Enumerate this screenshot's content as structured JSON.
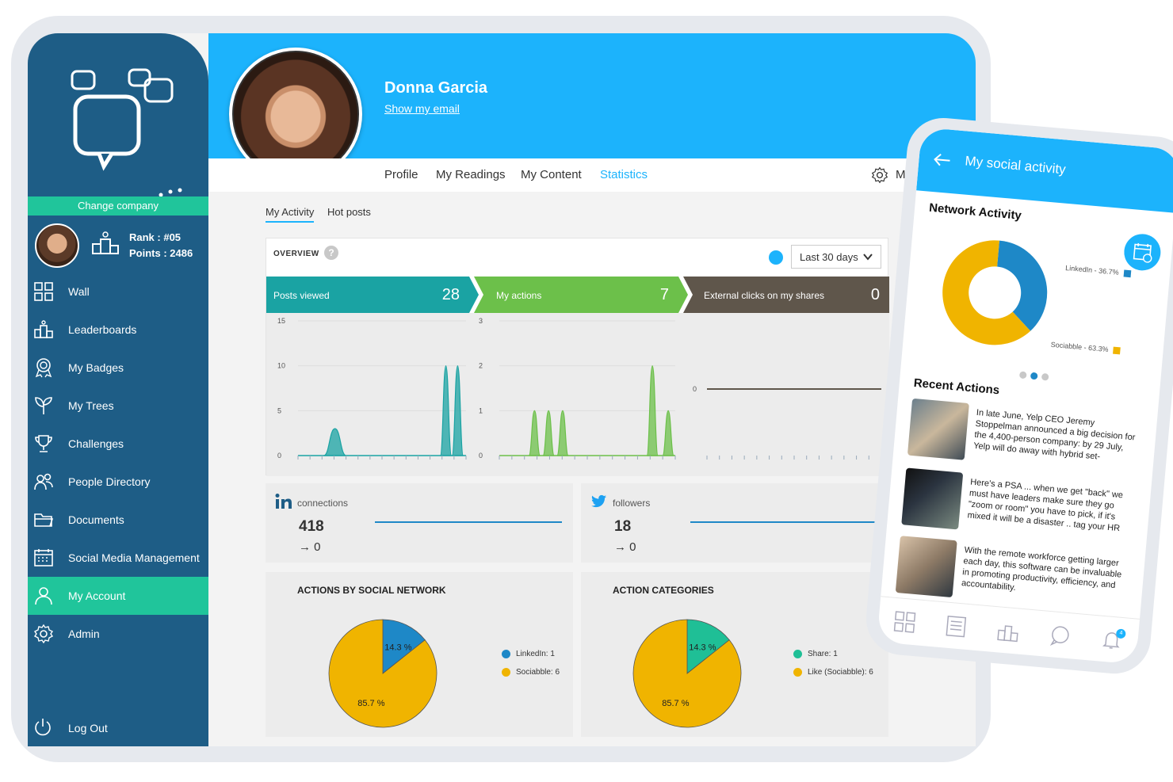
{
  "sidebar": {
    "change_company": "Change company",
    "rank": "Rank  : #05",
    "points": "Points : 2486",
    "items": [
      {
        "label": "Wall",
        "icon": "grid-icon"
      },
      {
        "label": "Leaderboards",
        "icon": "podium-icon"
      },
      {
        "label": "My Badges",
        "icon": "badge-icon"
      },
      {
        "label": "My Trees",
        "icon": "plant-icon"
      },
      {
        "label": "Challenges",
        "icon": "trophy-icon"
      },
      {
        "label": "People Directory",
        "icon": "people-icon"
      },
      {
        "label": "Documents",
        "icon": "folder-icon"
      },
      {
        "label": "Social Media Management",
        "icon": "calendar-icon"
      },
      {
        "label": "My Account",
        "icon": "user-icon",
        "active": true
      },
      {
        "label": "Admin",
        "icon": "gear-icon"
      }
    ],
    "logout": "Log Out"
  },
  "profile": {
    "name": "Donna Garcia",
    "email_link": "Show my email"
  },
  "tabs": [
    "Profile",
    "My Readings",
    "My Content",
    "Statistics"
  ],
  "active_tab": "Statistics",
  "settings_label": "M",
  "subtabs": [
    "My Activity",
    "Hot posts"
  ],
  "overview": {
    "label": "OVERVIEW",
    "help": "?",
    "period": "Last 30 days",
    "stats": [
      {
        "label": "Posts viewed",
        "value": "28",
        "color": "#1aa3a3"
      },
      {
        "label": "My actions",
        "value": "7",
        "color": "#6cc04a"
      },
      {
        "label": "External clicks on my shares",
        "value": "0",
        "color": "#5f564b"
      }
    ]
  },
  "chart_data": [
    {
      "type": "area",
      "title": "Posts viewed",
      "yticks": [
        "15",
        "10",
        "5",
        "0"
      ],
      "ylim": [
        0,
        15
      ],
      "peaks": [
        {
          "x": 0.22,
          "y": 3
        },
        {
          "x": 0.88,
          "y": 10
        },
        {
          "x": 0.95,
          "y": 10
        }
      ]
    },
    {
      "type": "area",
      "title": "My actions",
      "yticks": [
        "3",
        "2",
        "1",
        "0"
      ],
      "ylim": [
        0,
        3
      ],
      "peaks": [
        {
          "x": 0.2,
          "y": 1
        },
        {
          "x": 0.28,
          "y": 1
        },
        {
          "x": 0.36,
          "y": 1
        },
        {
          "x": 0.87,
          "y": 2
        },
        {
          "x": 0.96,
          "y": 1
        }
      ]
    },
    {
      "type": "line",
      "title": "External clicks on my shares",
      "yticks": [
        "0"
      ],
      "values": [
        0
      ]
    },
    {
      "type": "pie",
      "title": "ACTIONS BY SOCIAL NETWORK",
      "series": [
        {
          "name": "LinkedIn: 1",
          "value": 14.3,
          "label": "14.3 %",
          "color": "#1e88c7"
        },
        {
          "name": "Sociabble: 6",
          "value": 85.7,
          "label": "85.7 %",
          "color": "#f0b400"
        }
      ]
    },
    {
      "type": "pie",
      "title": "ACTION CATEGORIES",
      "series": [
        {
          "name": "Share: 1",
          "value": 14.3,
          "label": "14.3 %",
          "color": "#1fbf96"
        },
        {
          "name": "Like (Sociabble): 6",
          "value": 85.7,
          "label": "85.7 %",
          "color": "#f0b400"
        }
      ]
    },
    {
      "type": "pie",
      "title": "Network Activity",
      "series": [
        {
          "name": "LinkedIn - 36.7%",
          "value": 36.7,
          "color": "#1e88c7"
        },
        {
          "name": "Sociabble - 63.3%",
          "value": 63.3,
          "color": "#f0b400"
        }
      ]
    }
  ],
  "social": [
    {
      "network": "linkedin-icon",
      "label": "connections",
      "count": "418",
      "delta": "→ 0"
    },
    {
      "network": "twitter-icon",
      "label": "followers",
      "count": "18",
      "delta": "→ 0"
    }
  ],
  "phone": {
    "title": "My social activity",
    "section": "Network Activity",
    "legend_linkedin": "LinkedIn - 36.7%",
    "legend_sociabble": "Sociabble - 63.3%",
    "recent_title": "Recent Actions",
    "recent": [
      "In late June, Yelp CEO Jeremy Stoppelman announced a big decision for the 4,400-person company: by 29 July, Yelp will do away with hybrid set-",
      "Here's a PSA ... when we get \"back\" we must have leaders make sure they go \"zoom or room\" you have to pick, if it's mixed it will be a disaster .. tag your HR",
      "With the remote workforce getting larger each day, this software can be invaluable in promoting productivity, efficiency, and accountability."
    ],
    "notif_count": "4"
  },
  "colors": {
    "header": "#1cb3fc",
    "sidebar": "#1e5d86",
    "accent": "#20c59b"
  }
}
